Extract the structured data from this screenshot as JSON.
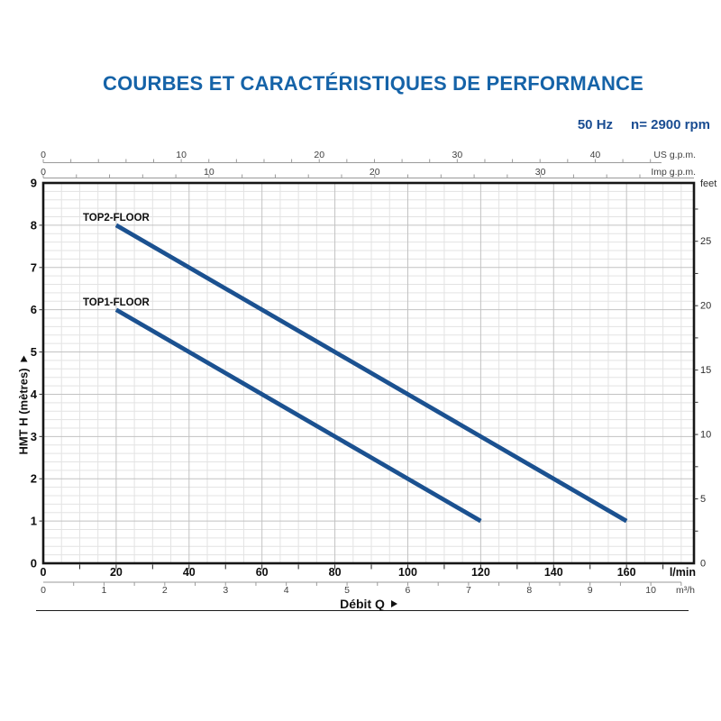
{
  "header": {
    "title": "COURBES ET CARACTÉRISTIQUES DE PERFORMANCE",
    "frequency": "50 Hz",
    "speed": "n= 2900 rpm"
  },
  "chart_data": {
    "type": "line",
    "x_title": "Débit Q",
    "x_range_lmin": [
      0,
      178.5
    ],
    "x_axes": [
      {
        "id": "us_gpm",
        "unit": "US g.p.m.",
        "tick_labels": [
          0,
          10,
          20,
          30,
          40
        ],
        "minor_step": 2,
        "lmin_per_unit": 3.78541
      },
      {
        "id": "imp_gpm",
        "unit": "Imp g.p.m.",
        "tick_labels": [
          0,
          10,
          20,
          30
        ],
        "minor_step": 2,
        "lmin_per_unit": 4.54609
      },
      {
        "id": "lmin",
        "unit": "l/min",
        "tick_labels": [
          0,
          20,
          40,
          60,
          80,
          100,
          120,
          140,
          160
        ],
        "minor_step": 10,
        "lmin_per_unit": 1
      },
      {
        "id": "m3h",
        "unit": "m³/h",
        "tick_labels": [
          0,
          1,
          2,
          3,
          4,
          5,
          6,
          7,
          8,
          9,
          10
        ],
        "minor_step": 0.5,
        "lmin_per_unit": 16.6667
      }
    ],
    "y_axis": {
      "title": "HMT H (mètres)",
      "unit": "m",
      "range": [
        0,
        9
      ],
      "tick_labels": [
        0,
        1,
        2,
        3,
        4,
        5,
        6,
        7,
        8,
        9
      ]
    },
    "y_axis_right": {
      "unit": "feet",
      "tick_labels": [
        0,
        5,
        10,
        15,
        20,
        25
      ],
      "minor_step": 2.5,
      "metres_per_unit": 0.3048
    },
    "grid": {
      "x_minor_lmin": 5,
      "x_major_lmin": 20,
      "y_minor_m": 0.2,
      "y_major_m": 1
    },
    "series": [
      {
        "name": "TOP2-FLOOR",
        "points_lmin_m": [
          [
            20,
            8
          ],
          [
            160,
            1
          ]
        ],
        "label_at_lmin_m": [
          20,
          8.1
        ]
      },
      {
        "name": "TOP1-FLOOR",
        "points_lmin_m": [
          [
            20,
            6
          ],
          [
            120,
            1
          ]
        ],
        "label_at_lmin_m": [
          20,
          6.1
        ]
      }
    ],
    "colors": {
      "curve": "#1b5190",
      "title_blue": "#1563a8",
      "subtitle_blue": "#1a4d92",
      "grid_minor": "#e3e3e3",
      "grid_major": "#c2c2c2",
      "axis_dark": "#161616",
      "scale_gray": "#9a9a9a",
      "tick_text_gray": "#3f3f3f",
      "tick_text_dark": "#0d0d0d"
    }
  }
}
